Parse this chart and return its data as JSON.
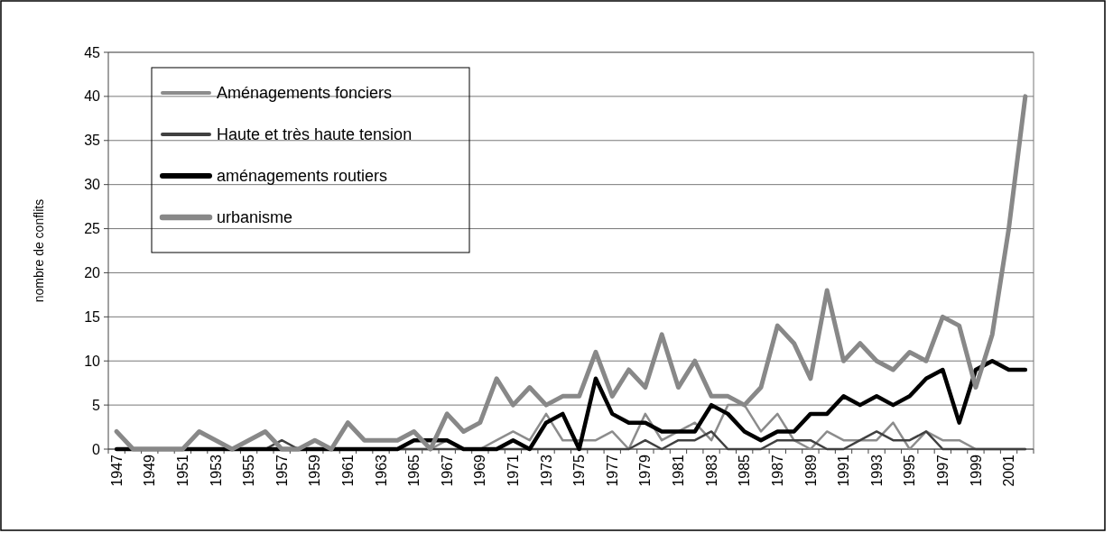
{
  "chart_data": {
    "type": "line",
    "ylabel": "nombre de conflits",
    "categories": [
      "1947",
      null,
      "1949",
      null,
      "1951",
      null,
      "1953",
      null,
      "1955",
      null,
      "1957",
      null,
      "1959",
      null,
      "1961",
      null,
      "1963",
      null,
      "1965",
      null,
      "1967",
      null,
      "1969",
      null,
      "1971",
      null,
      "1973",
      null,
      "1975",
      null,
      "1977",
      null,
      "1979",
      null,
      "1981",
      null,
      "1983",
      null,
      "1985",
      null,
      "1987",
      null,
      "1989",
      null,
      "1991",
      null,
      "1993",
      null,
      "1995",
      null,
      "1997",
      null,
      "1999",
      null,
      "2001",
      null
    ],
    "series": [
      {
        "name": "Aménagements fonciers",
        "color": "#8c8c8c",
        "values": [
          0,
          0,
          0,
          0,
          0,
          0,
          0,
          0,
          0,
          0,
          0,
          0,
          0,
          0,
          0,
          0,
          0,
          0,
          0,
          0,
          1,
          0,
          0,
          1,
          2,
          1,
          4,
          1,
          1,
          1,
          2,
          0,
          4,
          1,
          2,
          3,
          1,
          5,
          5,
          2,
          4,
          1,
          0,
          2,
          1,
          1,
          1,
          3,
          0,
          2,
          1,
          1,
          0,
          0,
          0,
          0
        ]
      },
      {
        "name": "Haute et très haute tension",
        "color": "#404040",
        "values": [
          0,
          0,
          0,
          0,
          0,
          0,
          0,
          0,
          0,
          0,
          1,
          0,
          0,
          0,
          0,
          0,
          0,
          0,
          0,
          0,
          0,
          0,
          0,
          0,
          0,
          0,
          0,
          0,
          0,
          0,
          0,
          0,
          1,
          0,
          1,
          1,
          2,
          0,
          0,
          0,
          1,
          1,
          1,
          0,
          0,
          1,
          2,
          1,
          1,
          2,
          0,
          0,
          0,
          0,
          0,
          0
        ]
      },
      {
        "name": "aménagements routiers",
        "color": "#000000",
        "values": [
          0,
          0,
          0,
          0,
          0,
          0,
          0,
          0,
          0,
          0,
          0,
          0,
          0,
          0,
          0,
          0,
          0,
          0,
          1,
          1,
          1,
          0,
          0,
          0,
          1,
          0,
          3,
          4,
          0,
          8,
          4,
          3,
          3,
          2,
          2,
          2,
          5,
          4,
          2,
          1,
          2,
          2,
          4,
          4,
          6,
          5,
          6,
          5,
          6,
          8,
          9,
          3,
          9,
          10,
          9,
          9
        ]
      },
      {
        "name": "urbanisme",
        "color": "#888888",
        "values": [
          2,
          0,
          0,
          0,
          0,
          2,
          1,
          0,
          1,
          2,
          0,
          0,
          1,
          0,
          3,
          1,
          1,
          1,
          2,
          0,
          4,
          2,
          3,
          8,
          5,
          7,
          5,
          6,
          6,
          11,
          6,
          9,
          7,
          13,
          7,
          10,
          6,
          6,
          5,
          7,
          14,
          12,
          8,
          18,
          10,
          12,
          10,
          9,
          11,
          10,
          15,
          14,
          7,
          13,
          25,
          40
        ]
      }
    ],
    "ylim": [
      0,
      45
    ],
    "yticks": [
      0,
      5,
      10,
      15,
      20,
      25,
      30,
      35,
      40,
      45
    ],
    "grid": "y",
    "legend": "top left"
  }
}
